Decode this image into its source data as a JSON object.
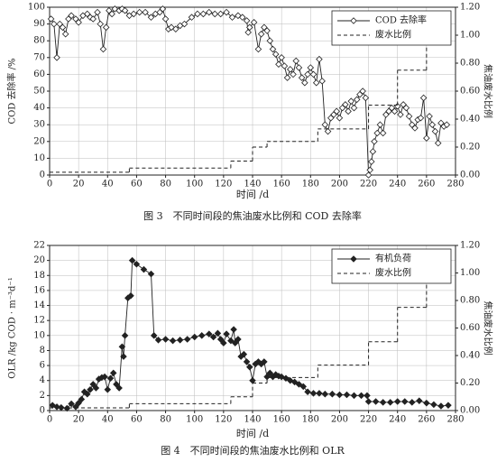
{
  "chart_data": [
    {
      "type": "line",
      "title": "图 3　不同时间段的焦油废水比例和 COD 去除率",
      "xlabel": "时间 /d",
      "ylabel": "COD 去除率 /%",
      "y2label": "焦油废水比例",
      "xlim": [
        0,
        280
      ],
      "xticks": [
        0,
        20,
        40,
        60,
        80,
        100,
        120,
        140,
        160,
        180,
        200,
        220,
        240,
        260,
        280
      ],
      "ylim": [
        0,
        100
      ],
      "yticks": [
        0,
        10,
        20,
        30,
        40,
        50,
        60,
        70,
        80,
        90,
        100
      ],
      "y2lim": [
        0,
        1.2
      ],
      "y2ticks": [
        {
          "value": 0,
          "label": "0.00"
        },
        {
          "value": 0.2,
          "label": "0.20"
        },
        {
          "value": 0.4,
          "label": "0.40"
        },
        {
          "value": 0.6,
          "label": "0.60"
        },
        {
          "value": 0.8,
          "label": "0.80"
        },
        {
          "value": 1.0,
          "label": "1.00"
        },
        {
          "value": 1.2,
          "label": "1.20"
        }
      ],
      "grid": true,
      "legend": "upper-right",
      "series": [
        {
          "name": "COD 去除率",
          "color": "#222",
          "marker": "diamond",
          "marker_fill": "#fff",
          "x": [
            1,
            3,
            5,
            7,
            9,
            11,
            13,
            15,
            18,
            20,
            23,
            26,
            28,
            30,
            33,
            35,
            37,
            39,
            41,
            43,
            45,
            48,
            50,
            52,
            55,
            58,
            62,
            66,
            70,
            73,
            76,
            78,
            80,
            82,
            84,
            87,
            90,
            93,
            98,
            102,
            106,
            110,
            114,
            118,
            122,
            126,
            130,
            133,
            136,
            137,
            138,
            141,
            144,
            146,
            148,
            150,
            152,
            154,
            156,
            158,
            160,
            162,
            164,
            166,
            168,
            170,
            172,
            174,
            176,
            178,
            180,
            182,
            184,
            186,
            188,
            190,
            192,
            194,
            196,
            198,
            200,
            202,
            204,
            206,
            208,
            210,
            212,
            214,
            216,
            218,
            220,
            221,
            222,
            223,
            224,
            226,
            228,
            230,
            232,
            234,
            236,
            238,
            240,
            242,
            244,
            246,
            248,
            250,
            252,
            254,
            256,
            258,
            260,
            262,
            264,
            266,
            268,
            270,
            272,
            274
          ],
          "values": [
            93,
            90,
            70,
            90,
            88,
            84,
            93,
            95,
            93,
            91,
            95,
            96,
            94,
            93,
            97,
            90,
            75,
            88,
            98,
            96,
            99,
            98,
            99,
            98,
            95,
            96,
            97,
            97,
            94,
            96,
            97,
            99,
            93,
            87,
            88,
            87,
            89,
            90,
            94,
            96,
            96,
            97,
            96,
            96,
            97,
            94,
            95,
            94,
            92,
            85,
            88,
            91,
            75,
            84,
            88,
            86,
            80,
            75,
            72,
            66,
            70,
            65,
            58,
            63,
            60,
            68,
            64,
            58,
            55,
            60,
            64,
            60,
            55,
            69,
            56,
            30,
            26,
            34,
            36,
            38,
            34,
            40,
            42,
            38,
            44,
            40,
            45,
            48,
            50,
            46,
            0,
            3,
            8,
            14,
            20,
            25,
            30,
            25,
            36,
            38,
            40,
            38,
            41,
            36,
            42,
            40,
            35,
            30,
            28,
            33,
            34,
            46,
            22,
            35,
            30,
            26,
            19,
            31,
            29,
            30
          ]
        },
        {
          "name": "废水比例",
          "color": "#222",
          "dash": true,
          "step": "post",
          "axis": "y2",
          "x": [
            0,
            55,
            125,
            140,
            150,
            185,
            220,
            240,
            260,
            275
          ],
          "values": [
            0.02,
            0.05,
            0.1,
            0.2,
            0.24,
            0.33,
            0.5,
            0.75,
            1.0,
            1.0
          ]
        }
      ]
    },
    {
      "type": "line",
      "title": "图 4　不同时间段的焦油废水比例和 OLR",
      "xlabel": "时间 /d",
      "ylabel": "OLR /kg COD · m⁻³d⁻¹",
      "y2label": "焦油废水比例",
      "xlim": [
        0,
        280
      ],
      "xticks": [
        0,
        20,
        40,
        60,
        80,
        100,
        120,
        140,
        160,
        180,
        200,
        220,
        240,
        260,
        280
      ],
      "ylim": [
        0,
        22
      ],
      "yticks": [
        0,
        2,
        4,
        6,
        8,
        10,
        12,
        14,
        16,
        18,
        20,
        22
      ],
      "y2lim": [
        0,
        1.2
      ],
      "y2ticks": [
        {
          "value": 0,
          "label": "0.00"
        },
        {
          "value": 0.2,
          "label": "0.20"
        },
        {
          "value": 0.4,
          "label": "0.40"
        },
        {
          "value": 0.6,
          "label": "0.60"
        },
        {
          "value": 0.8,
          "label": "0.80"
        },
        {
          "value": 1.0,
          "label": "1.00"
        },
        {
          "value": 1.2,
          "label": "1.20"
        }
      ],
      "grid": true,
      "legend": "upper-right",
      "series": [
        {
          "name": "有机负荷",
          "color": "#222",
          "marker": "diamond",
          "marker_fill": "#222",
          "x": [
            2,
            5,
            8,
            12,
            15,
            18,
            20,
            22,
            24,
            26,
            28,
            30,
            32,
            34,
            36,
            38,
            40,
            42,
            44,
            46,
            48,
            50,
            51,
            52,
            54,
            56,
            57,
            60,
            65,
            70,
            72,
            75,
            80,
            85,
            90,
            95,
            100,
            105,
            110,
            113,
            116,
            118,
            120,
            122,
            125,
            127,
            128,
            130,
            132,
            134,
            136,
            138,
            140,
            142,
            144,
            146,
            148,
            150,
            152,
            154,
            156,
            158,
            160,
            163,
            166,
            169,
            172,
            175,
            178,
            182,
            186,
            190,
            195,
            200,
            205,
            210,
            215,
            219,
            220,
            225,
            230,
            235,
            240,
            245,
            250,
            255,
            260,
            265,
            270,
            275
          ],
          "values": [
            0.7,
            0.5,
            0.4,
            0.3,
            0.9,
            0.5,
            1.0,
            1.5,
            2.5,
            2.2,
            2.8,
            3.5,
            3.0,
            4.2,
            4.4,
            4.5,
            2.8,
            4.3,
            5.0,
            3.5,
            3.0,
            8.5,
            7.2,
            10.0,
            15.0,
            15.3,
            20.0,
            19.5,
            18.8,
            18.2,
            10.0,
            9.4,
            9.5,
            9.3,
            9.4,
            9.5,
            9.8,
            10.0,
            10.2,
            9.8,
            10.3,
            9.5,
            9.0,
            10.2,
            9.3,
            10.8,
            9.0,
            9.5,
            7.2,
            7.5,
            6.5,
            5.8,
            4.0,
            6.2,
            6.5,
            6.2,
            6.5,
            4.5,
            5.0,
            4.5,
            4.8,
            4.6,
            4.5,
            4.3,
            4.0,
            3.8,
            3.5,
            3.2,
            2.5,
            2.3,
            2.3,
            2.2,
            2.2,
            2.1,
            2.1,
            2.0,
            2.0,
            2.0,
            1.2,
            1.2,
            1.1,
            1.1,
            1.2,
            1.2,
            1.1,
            1.3,
            1.0,
            0.8,
            0.6,
            0.7
          ]
        },
        {
          "name": "废水比例",
          "color": "#222",
          "dash": true,
          "step": "post",
          "axis": "y2",
          "x": [
            0,
            55,
            125,
            140,
            150,
            185,
            220,
            240,
            260,
            275
          ],
          "values": [
            0.02,
            0.05,
            0.1,
            0.2,
            0.24,
            0.33,
            0.5,
            0.75,
            1.0,
            1.0
          ]
        }
      ]
    }
  ]
}
